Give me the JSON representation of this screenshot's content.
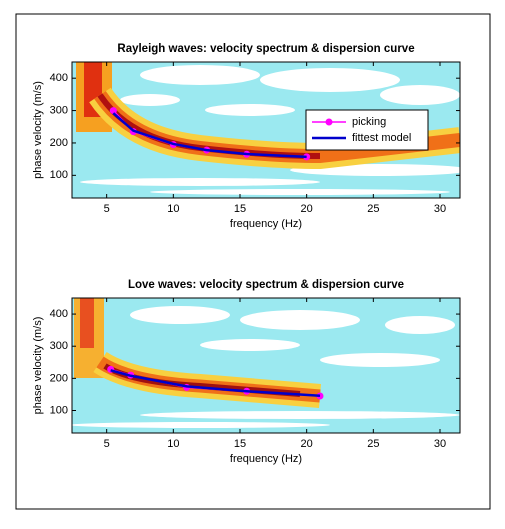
{
  "chart_data": [
    {
      "type": "line",
      "title": "Rayleigh waves: velocity spectrum & dispersion curve",
      "x_label": "frequency (Hz)",
      "y_label": "phase velocity (m/s)",
      "x": [
        5.5,
        7,
        10,
        12.5,
        15.5,
        20
      ],
      "series": [
        {
          "name": "picking",
          "color": "#ff00ff",
          "marker": true,
          "values": [
            300,
            235,
            195,
            178,
            165,
            157
          ]
        },
        {
          "name": "fittest model",
          "color": "#0000cc",
          "marker": false,
          "values": [
            292,
            238,
            197,
            178,
            166,
            157
          ]
        }
      ],
      "xlim": [
        2.4,
        31.5
      ],
      "ylim": [
        30,
        450
      ],
      "xticks": [
        5,
        10,
        15,
        20,
        25,
        30
      ],
      "yticks": [
        100,
        200,
        300,
        400
      ],
      "legend": "upper right"
    },
    {
      "type": "line",
      "title": "Love waves: velocity spectrum & dispersion curve",
      "x_label": "frequency (Hz)",
      "y_label": "phase velocity (m/s)",
      "x": [
        5.3,
        6.8,
        11,
        15.5,
        21
      ],
      "series": [
        {
          "color": "#ff00ff",
          "marker": true,
          "values": [
            228,
            210,
            172,
            160,
            145
          ]
        },
        {
          "color": "#0000cc",
          "marker": false,
          "values": [
            225,
            208,
            175,
            160,
            146
          ]
        }
      ],
      "xlim": [
        2.4,
        31.5
      ],
      "ylim": [
        30,
        450
      ],
      "xticks": [
        5,
        10,
        15,
        20,
        25,
        30
      ],
      "yticks": [
        100,
        200,
        300,
        400
      ]
    }
  ]
}
